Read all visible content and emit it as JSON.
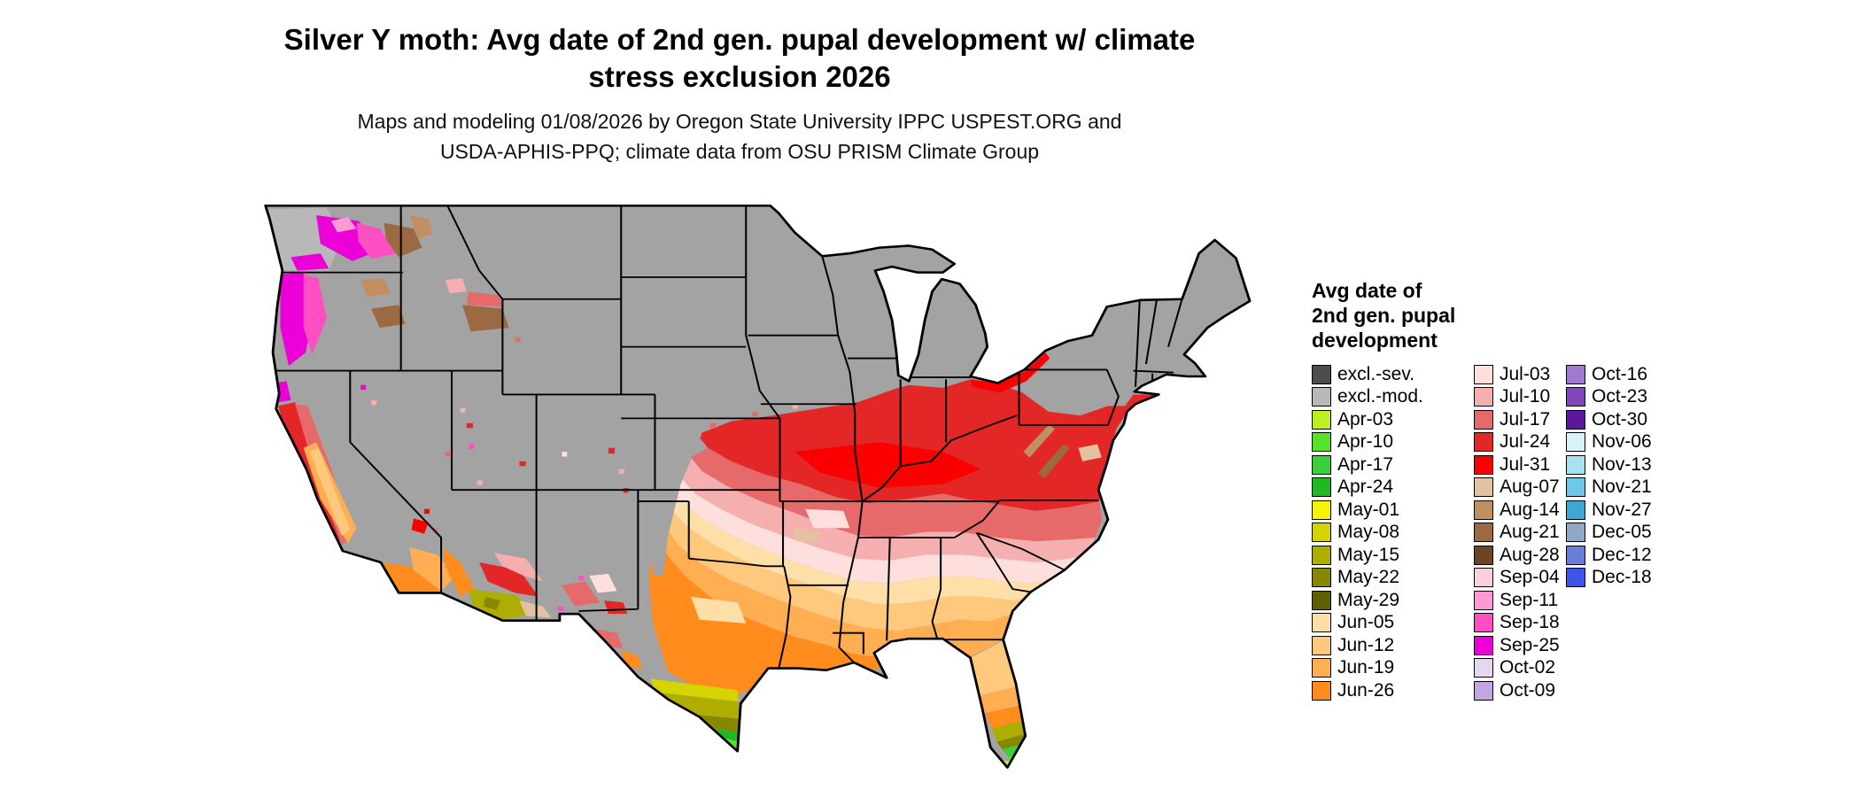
{
  "title": {
    "line1": "Silver Y moth: Avg date of 2nd gen. pupal development w/ climate",
    "line2": "stress exclusion 2026"
  },
  "subtitle": {
    "line1": "Maps and modeling 01/08/2026 by Oregon State University IPPC USPEST.ORG and",
    "line2": "USDA-APHIS-PPQ; climate data from OSU PRISM Climate Group"
  },
  "legend": {
    "title_lines": [
      "Avg date of",
      "2nd gen. pupal",
      "development"
    ],
    "columns": [
      [
        "excl.-sev.",
        "excl.-mod.",
        "Apr-03",
        "Apr-10",
        "Apr-17",
        "Apr-24",
        "May-01",
        "May-08",
        "May-15",
        "May-22",
        "May-29",
        "Jun-05",
        "Jun-12",
        "Jun-19",
        "Jun-26"
      ],
      [
        "Jul-03",
        "Jul-10",
        "Jul-17",
        "Jul-24",
        "Jul-31",
        "Aug-07",
        "Aug-14",
        "Aug-21",
        "Aug-28",
        "Sep-04",
        "Sep-11",
        "Sep-18",
        "Sep-25",
        "Oct-02",
        "Oct-09"
      ],
      [
        "Oct-16",
        "Oct-23",
        "Oct-30",
        "Nov-06",
        "Nov-13",
        "Nov-21",
        "Nov-27",
        "Dec-05",
        "Dec-12",
        "Dec-18"
      ]
    ]
  },
  "palette": {
    "excl.-sev.": "#4d4d4d",
    "excl.-mod.": "#b8b8b8",
    "Apr-03": "#bdf01e",
    "Apr-10": "#55e32a",
    "Apr-17": "#3ccf3c",
    "Apr-24": "#22b822",
    "May-01": "#f5f500",
    "May-08": "#d4d400",
    "May-15": "#aeae00",
    "May-22": "#878700",
    "May-29": "#5f5f00",
    "Jun-05": "#ffdfa8",
    "Jun-12": "#ffc97d",
    "Jun-19": "#ffae52",
    "Jun-26": "#ff8c1c",
    "Jul-03": "#ffdede",
    "Jul-10": "#f5afaf",
    "Jul-17": "#e66a6a",
    "Jul-24": "#e32626",
    "Jul-31": "#fa0000",
    "Aug-07": "#e3c2a2",
    "Aug-14": "#c28f63",
    "Aug-21": "#9b6a42",
    "Aug-28": "#6e4523",
    "Sep-04": "#ffcfe0",
    "Sep-11": "#ff9ad2",
    "Sep-18": "#ff4fc3",
    "Sep-25": "#ec00d8",
    "Oct-02": "#e3d8ef",
    "Oct-09": "#c2a7e0",
    "Oct-16": "#a179d0",
    "Oct-23": "#8245ba",
    "Oct-30": "#5c189c",
    "Nov-06": "#d8f2fa",
    "Nov-13": "#a7e2f2",
    "Nov-21": "#6cc8e6",
    "Nov-27": "#3ea6d4",
    "Dec-05": "#8ea8c6",
    "Dec-12": "#687fd6",
    "Dec-18": "#3d56e8"
  },
  "map_colors": {
    "map-base": "#a3a3a3",
    "water": "#ffffff",
    "border": "#000000"
  }
}
